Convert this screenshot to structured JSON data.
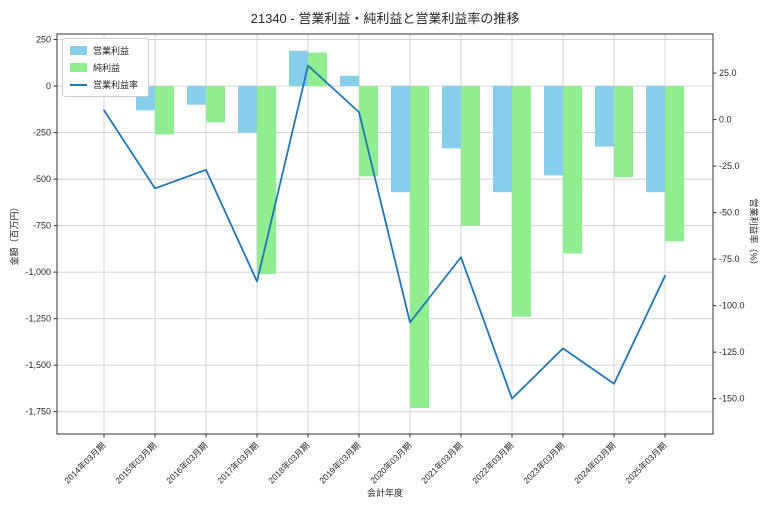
{
  "chart_data": {
    "type": "bar+line",
    "title": "21340 - 営業利益・純利益と営業利益率の推移",
    "xlabel": "会計年度",
    "ylabel_left": "金額（百万円）",
    "ylabel_right": "営業利益率（%）",
    "categories": [
      "2014年03月期",
      "2015年03月期",
      "2016年03月期",
      "2017年03月期",
      "2018年03月期",
      "2019年03月期",
      "2020年03月期",
      "2021年03月期",
      "2022年03月期",
      "2023年03月期",
      "2024年03月期",
      "2025年03月期"
    ],
    "series": [
      {
        "key": "operating_profit",
        "name": "営業利益",
        "type": "bar",
        "axis": "left",
        "color": "#87ceeb",
        "values": [
          5,
          -130,
          -100,
          -250,
          190,
          55,
          -570,
          -335,
          -570,
          -480,
          -325,
          -570
        ]
      },
      {
        "key": "net_profit",
        "name": "純利益",
        "type": "bar",
        "axis": "left",
        "color": "#90ee90",
        "values": [
          40,
          -260,
          -195,
          -1010,
          180,
          -485,
          -1730,
          -750,
          -1240,
          -900,
          -490,
          -835
        ]
      },
      {
        "key": "operating_margin",
        "name": "営業利益率",
        "type": "line",
        "axis": "right",
        "color": "#1f77b4",
        "values": [
          5,
          -37,
          -27,
          -87,
          29,
          4,
          -109,
          -74,
          -150,
          -123,
          -142,
          -84
        ]
      }
    ],
    "y_left": {
      "lim": [
        -1870,
        280
      ],
      "tick_values": [
        250,
        0,
        -250,
        -500,
        -750,
        -1000,
        -1250,
        -1500,
        -1750
      ],
      "tick_labels": [
        "250",
        "0",
        "-250",
        "-500",
        "-750",
        "-1,000",
        "-1,250",
        "-1,500",
        "-1,750"
      ]
    },
    "y_right": {
      "lim": [
        -169,
        46
      ],
      "tick_values": [
        25,
        0,
        -25,
        -50,
        -75,
        -100,
        -125,
        -150
      ],
      "tick_labels": [
        "25.0",
        "0.0",
        "-25.0",
        "-50.0",
        "-75.0",
        "-100.0",
        "-125.0",
        "-150.0"
      ]
    },
    "grid": true,
    "legend_position": "upper left"
  }
}
